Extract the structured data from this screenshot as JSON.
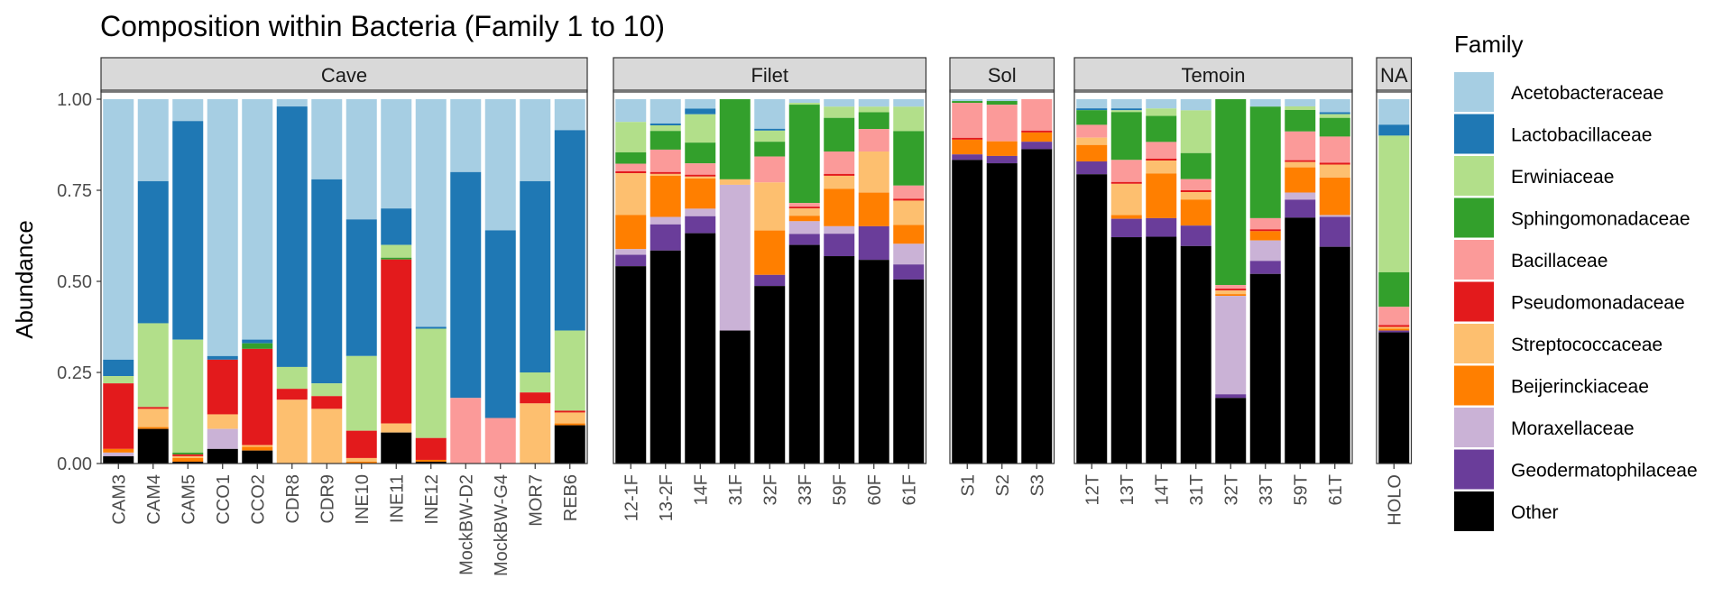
{
  "chart_data": {
    "type": "bar",
    "stacked": true,
    "title": "Composition within Bacteria (Family 1 to 10)",
    "xlabel": "",
    "ylabel": "Abundance",
    "ylim": [
      0,
      1
    ],
    "y_ticks": [
      "0.00",
      "0.25",
      "0.50",
      "0.75",
      "1.00"
    ],
    "grid": false,
    "legend_title": "Family",
    "legend_position": "right",
    "families": [
      {
        "name": "Acetobacteraceae",
        "color": "#A6CEE3"
      },
      {
        "name": "Lactobacillaceae",
        "color": "#1F78B4"
      },
      {
        "name": "Erwiniaceae",
        "color": "#B2DF8A"
      },
      {
        "name": "Sphingomonadaceae",
        "color": "#33A02C"
      },
      {
        "name": "Bacillaceae",
        "color": "#FB9A99"
      },
      {
        "name": "Pseudomonadaceae",
        "color": "#E31A1C"
      },
      {
        "name": "Streptococcaceae",
        "color": "#FDBF6F"
      },
      {
        "name": "Beijerinckiaceae",
        "color": "#FF7F00"
      },
      {
        "name": "Moraxellaceae",
        "color": "#CAB2D6"
      },
      {
        "name": "Geodermatophilaceae",
        "color": "#6A3D9A"
      },
      {
        "name": "Other",
        "color": "#000000"
      }
    ],
    "facets": [
      {
        "label": "Cave",
        "samples": [
          {
            "name": "CAM3",
            "values": [
              0.715,
              0.045,
              0.02,
              0,
              0,
              0.18,
              0,
              0.01,
              0.01,
              0,
              0.02
            ]
          },
          {
            "name": "CAM4",
            "values": [
              0.225,
              0.39,
              0.23,
              0,
              0,
              0.005,
              0.05,
              0.005,
              0,
              0,
              0.095
            ]
          },
          {
            "name": "CAM5",
            "values": [
              0.06,
              0.6,
              0.31,
              0.005,
              0,
              0.005,
              0.005,
              0.01,
              0,
              0,
              0.005
            ]
          },
          {
            "name": "CCO1",
            "values": [
              0.705,
              0.01,
              0,
              0,
              0,
              0.15,
              0.04,
              0,
              0.055,
              0,
              0.04
            ]
          },
          {
            "name": "CCO2",
            "values": [
              0.65,
              0.01,
              0,
              0.015,
              0,
              0.26,
              0.005,
              0.01,
              0,
              0,
              0.035
            ]
          },
          {
            "name": "CDR8",
            "values": [
              0.02,
              0.715,
              0.06,
              0,
              0,
              0.03,
              0.175,
              0,
              0,
              0,
              0
            ]
          },
          {
            "name": "CDR9",
            "values": [
              0.22,
              0.56,
              0.035,
              0,
              0,
              0.035,
              0.15,
              0,
              0,
              0,
              0
            ]
          },
          {
            "name": "INE10",
            "values": [
              0.33,
              0.375,
              0.205,
              0,
              0,
              0.075,
              0.01,
              0.005,
              0,
              0,
              0
            ]
          },
          {
            "name": "INE11",
            "values": [
              0.3,
              0.1,
              0.035,
              0.005,
              0,
              0.45,
              0.025,
              0,
              0,
              0,
              0.085
            ]
          },
          {
            "name": "INE12",
            "values": [
              0.625,
              0.005,
              0.3,
              0,
              0,
              0.06,
              0,
              0.005,
              0,
              0,
              0.005
            ]
          },
          {
            "name": "MockBW-D2",
            "values": [
              0.2,
              0.62,
              0,
              0,
              0.18,
              0,
              0,
              0,
              0,
              0,
              0
            ]
          },
          {
            "name": "MockBW-G4",
            "values": [
              0.36,
              0.515,
              0,
              0,
              0.125,
              0,
              0,
              0,
              0,
              0,
              0
            ]
          },
          {
            "name": "MOR7",
            "values": [
              0.225,
              0.525,
              0.055,
              0,
              0,
              0.03,
              0.165,
              0,
              0,
              0,
              0
            ]
          },
          {
            "name": "REB6",
            "values": [
              0.085,
              0.55,
              0.22,
              0,
              0,
              0.005,
              0.03,
              0.005,
              0,
              0,
              0.105
            ]
          }
        ]
      },
      {
        "label": "Filet",
        "samples": [
          {
            "name": "12-1F",
            "values": [
              0.06,
              0,
              0.08,
              0.03,
              0.02,
              0.005,
              0.11,
              0.09,
              0.015,
              0.03,
              0.52
            ]
          },
          {
            "name": "13-2F",
            "values": [
              0.065,
              0.005,
              0.015,
              0.05,
              0.06,
              0.005,
              0.005,
              0.11,
              0.02,
              0.07,
              0.57
            ]
          },
          {
            "name": "14F",
            "values": [
              0.025,
              0.015,
              0.075,
              0.055,
              0.03,
              0.005,
              0.005,
              0.08,
              0.02,
              0.045,
              0.61
            ]
          },
          {
            "name": "31F",
            "values": [
              0,
              0,
              0,
              0.22,
              0,
              0,
              0.015,
              0,
              0.4,
              0,
              0.365
            ]
          },
          {
            "name": "32F",
            "values": [
              0.08,
              0.005,
              0.03,
              0.04,
              0.07,
              0,
              0.13,
              0.12,
              0,
              0.03,
              0.48
            ]
          },
          {
            "name": "33F",
            "values": [
              0.01,
              0,
              0.005,
              0.27,
              0.01,
              0.005,
              0.02,
              0.015,
              0.035,
              0.03,
              0.6
            ]
          },
          {
            "name": "59F",
            "values": [
              0.02,
              0,
              0.03,
              0.09,
              0.06,
              0.005,
              0.035,
              0.1,
              0.02,
              0.06,
              0.555
            ]
          },
          {
            "name": "60F",
            "values": [
              0.02,
              0,
              0.015,
              0.045,
              0.06,
              0,
              0.11,
              0.09,
              0,
              0.09,
              0.545
            ]
          },
          {
            "name": "61F",
            "values": [
              0.02,
              0,
              0.065,
              0.145,
              0.035,
              0.005,
              0.065,
              0.05,
              0.055,
              0.04,
              0.49
            ]
          }
        ]
      },
      {
        "label": "Sol",
        "samples": [
          {
            "name": "S1",
            "values": [
              0.005,
              0,
              0,
              0.005,
              0.095,
              0.005,
              0,
              0.04,
              0,
              0.015,
              0.825
            ]
          },
          {
            "name": "S2",
            "values": [
              0.005,
              0,
              0,
              0.01,
              0.1,
              0,
              0,
              0.04,
              0,
              0.02,
              0.82
            ]
          },
          {
            "name": "S3",
            "values": [
              0,
              0,
              0,
              0,
              0.085,
              0.005,
              0,
              0.025,
              0,
              0.02,
              0.85
            ]
          }
        ]
      },
      {
        "label": "Temoin",
        "samples": [
          {
            "name": "12T",
            "values": [
              0.025,
              0.005,
              0,
              0.04,
              0.035,
              0,
              0.02,
              0.045,
              0,
              0.035,
              0.79
            ]
          },
          {
            "name": "13T",
            "values": [
              0.025,
              0.005,
              0.005,
              0.13,
              0.06,
              0.005,
              0.085,
              0.01,
              0,
              0.05,
              0.615
            ]
          },
          {
            "name": "14T",
            "values": [
              0.025,
              0,
              0.02,
              0.07,
              0.045,
              0.005,
              0.035,
              0.12,
              0,
              0.05,
              0.61
            ]
          },
          {
            "name": "31T",
            "values": [
              0.03,
              0,
              0.115,
              0.07,
              0.03,
              0.005,
              0.02,
              0.07,
              0,
              0.055,
              0.585
            ]
          },
          {
            "name": "32T",
            "values": [
              0,
              0,
              0,
              0.51,
              0.01,
              0.005,
              0.01,
              0.005,
              0.27,
              0.01,
              0.18
            ]
          },
          {
            "name": "33T",
            "values": [
              0.02,
              0,
              0,
              0.3,
              0.03,
              0.005,
              0,
              0.025,
              0.055,
              0.035,
              0.51
            ]
          },
          {
            "name": "59T",
            "values": [
              0.02,
              0,
              0.01,
              0.06,
              0.08,
              0.005,
              0.015,
              0.07,
              0.02,
              0.05,
              0.685
            ]
          },
          {
            "name": "61T",
            "values": [
              0.035,
              0.005,
              0.01,
              0.05,
              0.07,
              0.005,
              0.035,
              0.1,
              0.005,
              0.08,
              0.58
            ]
          }
        ]
      },
      {
        "label": "NA",
        "samples": [
          {
            "name": "HOLO",
            "values": [
              0.07,
              0.03,
              0.375,
              0.095,
              0.05,
              0.005,
              0.005,
              0.005,
              0,
              0.005,
              0.36
            ]
          }
        ]
      }
    ]
  }
}
